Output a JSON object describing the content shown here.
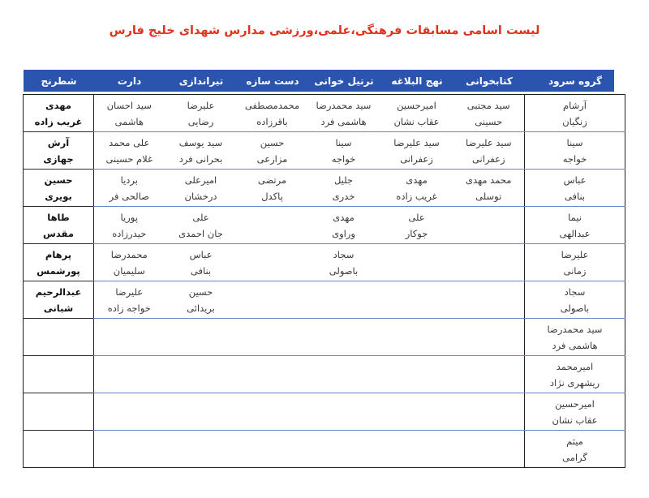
{
  "title": "لیست اسامی مسابقات فرهنگی،علمی،ورزشی مدارس شهدای خلیج فارس",
  "colors": {
    "title_red": "#e0321f",
    "header_blue": "#2b54ae",
    "row_divider_blue": "#6787c8",
    "outer_border": "#1f1f1f"
  },
  "table": {
    "columns": [
      "گروه سرود",
      "کتابخوانی",
      "نهج البلاغه",
      "ترتیل خوانی",
      "دست سازه",
      "تیراندازی",
      "دارت",
      "شطرنج"
    ],
    "rows": [
      [
        [
          "آرشام",
          "زنگیان"
        ],
        [
          "سید مجتبی",
          "حسینی"
        ],
        [
          "امیرحسین",
          "عقاب نشان"
        ],
        [
          "سید محمدرضا",
          "هاشمی فرد"
        ],
        [
          "محمدمصطفی",
          "باقرزاده"
        ],
        [
          "علیرضا",
          "رضایی"
        ],
        [
          "سید احسان",
          "هاشمی"
        ],
        [
          "مهدی",
          "غریب زاده"
        ]
      ],
      [
        [
          "سینا",
          "خواجه"
        ],
        [
          "سید علیرضا",
          "زعفرانی"
        ],
        [
          "سید علیرضا",
          "زعفرانی"
        ],
        [
          "سینا",
          "خواجه"
        ],
        [
          "حسین",
          "مزارعی"
        ],
        [
          "سید یوسف",
          "بحرانی فرد"
        ],
        [
          "علی محمد",
          "غلام حسینی"
        ],
        [
          "آرش",
          "جهازی"
        ]
      ],
      [
        [
          "عباس",
          "بنافی"
        ],
        [
          "محمد مهدی",
          "توسلی"
        ],
        [
          "مهدی",
          "غریب زاده"
        ],
        [
          "جلیل",
          "خدری"
        ],
        [
          "مرتضی",
          "پاکدل"
        ],
        [
          "امیرعلی",
          "درخشان"
        ],
        [
          "بردیا",
          "صالحی فر"
        ],
        [
          "حسین",
          "بویری"
        ]
      ],
      [
        [
          "نیما",
          "عبدالهی"
        ],
        null,
        [
          "علی",
          "جوکار"
        ],
        [
          "مهدی",
          "وراوی"
        ],
        null,
        [
          "علی",
          "جان احمدی"
        ],
        [
          "پوریا",
          "حیدرزاده"
        ],
        [
          "طاها",
          "مقدس"
        ]
      ],
      [
        [
          "علیرضا",
          "زمانی"
        ],
        null,
        null,
        [
          "سجاد",
          "باصولی"
        ],
        null,
        [
          "عباس",
          "بنافی"
        ],
        [
          "محمدرضا",
          "سلیمیان"
        ],
        [
          "پرهام",
          "پورشمس"
        ]
      ],
      [
        [
          "سجاد",
          "باصولی"
        ],
        null,
        null,
        null,
        null,
        [
          "حسین",
          "بریدائی"
        ],
        [
          "علیرضا",
          "خواجه زاده"
        ],
        [
          "عبدالرحیم",
          "شبانی"
        ]
      ],
      [
        [
          "سید محمدرضا",
          "هاشمی فرد"
        ],
        null,
        null,
        null,
        null,
        null,
        null,
        null
      ],
      [
        [
          "امیرمحمد",
          "ریشهری نژاد"
        ],
        null,
        null,
        null,
        null,
        null,
        null,
        null
      ],
      [
        [
          "امیرحسین",
          "عقاب نشان"
        ],
        null,
        null,
        null,
        null,
        null,
        null,
        null
      ],
      [
        [
          "میثم",
          "گرامی"
        ],
        null,
        null,
        null,
        null,
        null,
        null,
        null
      ]
    ]
  }
}
